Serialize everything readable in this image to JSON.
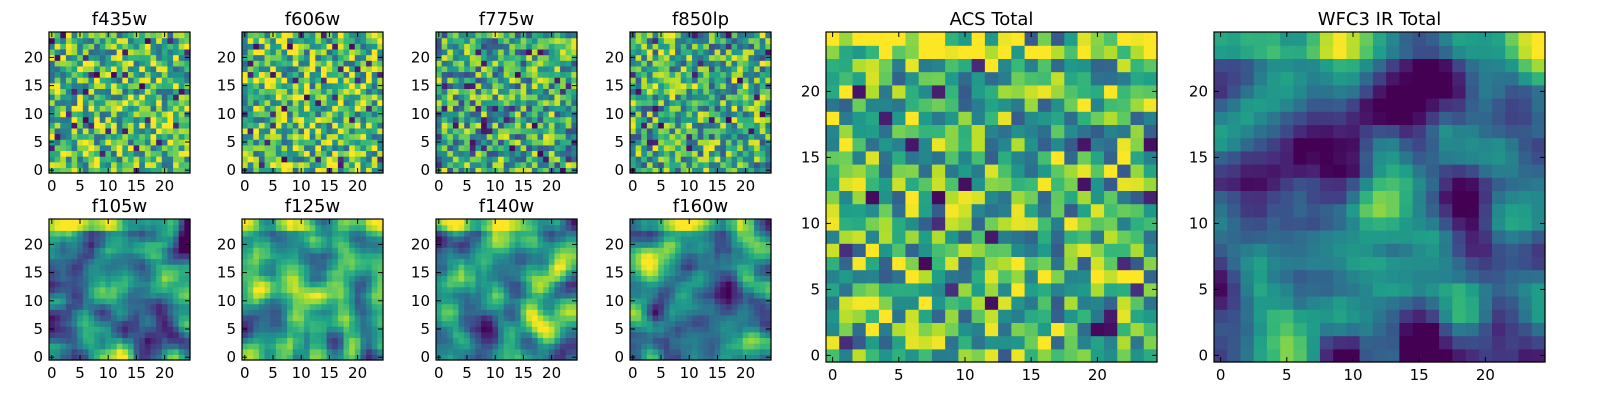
{
  "figure": {
    "colormap": "viridis",
    "background": "#ffffff",
    "frame_color": "#000000"
  },
  "chart_data": [
    {
      "type": "heatmap",
      "title": "f435w",
      "size": 25,
      "xticks": [
        "0",
        "5",
        "10",
        "15",
        "20"
      ],
      "yticks": [
        "0",
        "5",
        "10",
        "15",
        "20"
      ],
      "xlim": [
        0,
        25
      ],
      "ylim": [
        0,
        25
      ],
      "grid": false,
      "pattern": "noise",
      "seed": 11,
      "level": 0.7
    },
    {
      "type": "heatmap",
      "title": "f606w",
      "size": 25,
      "xticks": [
        "0",
        "5",
        "10",
        "15",
        "20"
      ],
      "yticks": [
        "0",
        "5",
        "10",
        "15",
        "20"
      ],
      "xlim": [
        0,
        25
      ],
      "ylim": [
        0,
        25
      ],
      "grid": false,
      "pattern": "noise",
      "seed": 23,
      "level": 0.7
    },
    {
      "type": "heatmap",
      "title": "f775w",
      "size": 25,
      "xticks": [
        "0",
        "5",
        "10",
        "15",
        "20"
      ],
      "yticks": [
        "0",
        "5",
        "10",
        "15",
        "20"
      ],
      "xlim": [
        0,
        25
      ],
      "ylim": [
        0,
        25
      ],
      "grid": false,
      "pattern": "noise",
      "seed": 37,
      "level": 0.6
    },
    {
      "type": "heatmap",
      "title": "f850lp",
      "size": 25,
      "xticks": [
        "0",
        "5",
        "10",
        "15",
        "20"
      ],
      "yticks": [
        "0",
        "5",
        "10",
        "15",
        "20"
      ],
      "xlim": [
        0,
        25
      ],
      "ylim": [
        0,
        25
      ],
      "grid": false,
      "pattern": "noise",
      "seed": 41,
      "level": 0.62
    },
    {
      "type": "heatmap",
      "title": "f105w",
      "size": 25,
      "xticks": [
        "0",
        "5",
        "10",
        "15",
        "20"
      ],
      "yticks": [
        "0",
        "5",
        "10",
        "15",
        "20"
      ],
      "xlim": [
        0,
        25
      ],
      "ylim": [
        0,
        25
      ],
      "grid": false,
      "pattern": "smooth",
      "seed": 53,
      "level": 0.55
    },
    {
      "type": "heatmap",
      "title": "f125w",
      "size": 25,
      "xticks": [
        "0",
        "5",
        "10",
        "15",
        "20"
      ],
      "yticks": [
        "0",
        "5",
        "10",
        "15",
        "20"
      ],
      "xlim": [
        0,
        25
      ],
      "ylim": [
        0,
        25
      ],
      "grid": false,
      "pattern": "smooth",
      "seed": 67,
      "level": 0.66
    },
    {
      "type": "heatmap",
      "title": "f140w",
      "size": 25,
      "xticks": [
        "0",
        "5",
        "10",
        "15",
        "20"
      ],
      "yticks": [
        "0",
        "5",
        "10",
        "15",
        "20"
      ],
      "xlim": [
        0,
        25
      ],
      "ylim": [
        0,
        25
      ],
      "grid": false,
      "pattern": "smooth",
      "seed": 79,
      "level": 0.62
    },
    {
      "type": "heatmap",
      "title": "f160w",
      "size": 25,
      "xticks": [
        "0",
        "5",
        "10",
        "15",
        "20"
      ],
      "yticks": [
        "0",
        "5",
        "10",
        "15",
        "20"
      ],
      "xlim": [
        0,
        25
      ],
      "ylim": [
        0,
        25
      ],
      "grid": false,
      "pattern": "smooth",
      "seed": 83,
      "level": 0.5
    },
    {
      "type": "heatmap",
      "title": "ACS Total",
      "size": 25,
      "xticks": [
        "0",
        "5",
        "10",
        "15",
        "20"
      ],
      "yticks": [
        "0",
        "5",
        "10",
        "15",
        "20"
      ],
      "xlim": [
        0,
        25
      ],
      "ylim": [
        0,
        25
      ],
      "grid": false,
      "pattern": "noise",
      "seed": 97,
      "level": 0.65
    },
    {
      "type": "heatmap",
      "title": "WFC3 IR Total",
      "size": 25,
      "xticks": [
        "0",
        "5",
        "10",
        "15",
        "20"
      ],
      "yticks": [
        "0",
        "5",
        "10",
        "15",
        "20"
      ],
      "xlim": [
        0,
        25
      ],
      "ylim": [
        0,
        25
      ],
      "grid": false,
      "pattern": "smooth",
      "seed": 101,
      "level": 0.5
    }
  ]
}
